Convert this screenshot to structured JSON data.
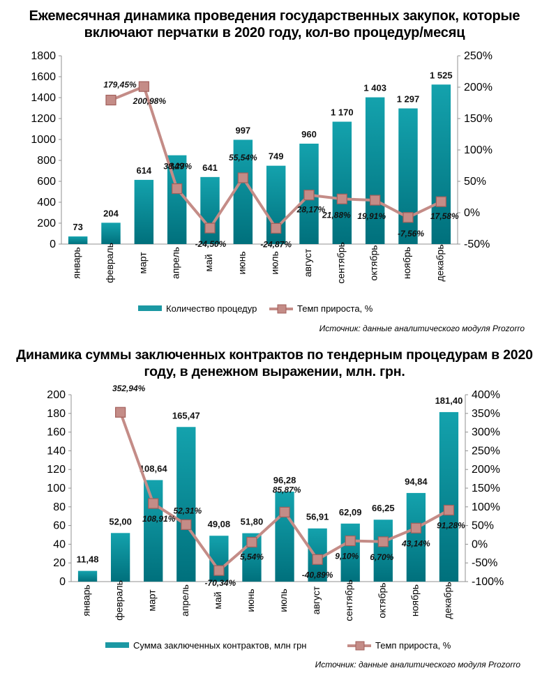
{
  "charts": [
    {
      "title": "Ежемесячная динамика проведения государственных закупок, которые включают перчатки в 2020 году, кол-во процедур/месяц",
      "source": "Источник: данные аналитического модуля Prozorro"
    },
    {
      "title": "Динамика суммы заключенных контрактов по тендерным процедурам в 2020 году, в денежном выражении, млн. грн.",
      "source": "Источник: данные аналитического модуля Prozorro"
    }
  ],
  "chart_data": [
    {
      "type": "bar",
      "title": "Ежемесячная динамика проведения государственных закупок, которые включают перчатки в 2020 году, кол-во процедур/месяц",
      "categories": [
        "январь",
        "февраль",
        "март",
        "апрель",
        "май",
        "июнь",
        "июль",
        "август",
        "сентябрь",
        "октябрь",
        "ноябрь",
        "декабрь"
      ],
      "series": [
        {
          "name": "Количество  процедур",
          "type": "bar",
          "values": [
            73,
            204,
            614,
            849,
            641,
            997,
            749,
            960,
            1170,
            1403,
            1297,
            1525
          ],
          "labels": [
            "73",
            "204",
            "614",
            "849",
            "641",
            "997",
            "749",
            "960",
            "1 170",
            "1 403",
            "1 297",
            "1 525"
          ],
          "color": "#1b98a3"
        },
        {
          "name": "Темп прироста, %",
          "type": "line",
          "values": [
            null,
            179.45,
            200.98,
            38.27,
            -24.5,
            55.54,
            -24.87,
            28.17,
            21.88,
            19.91,
            -7.56,
            17.58
          ],
          "labels": [
            "",
            "179,45%",
            "200,98%",
            "38,27%",
            "-24,50%",
            "55,54%",
            "-24,87%",
            "28,17%",
            "21,88%",
            "19,91%",
            "-7,56%",
            "17,58%"
          ],
          "color": "#c48c87"
        }
      ],
      "ylim": [
        0,
        1800
      ],
      "y_ticks": [
        0,
        200,
        400,
        600,
        800,
        1000,
        1200,
        1400,
        1600,
        1800
      ],
      "y_tick_labels": [
        "0",
        "200",
        "400",
        "600",
        "800",
        "1000",
        "1200",
        "1400",
        "1600",
        "1800"
      ],
      "y2lim": [
        -50,
        250
      ],
      "y2_ticks": [
        -50,
        0,
        50,
        100,
        150,
        200,
        250
      ],
      "y2_tick_labels": [
        "-50%",
        "0%",
        "50%",
        "100%",
        "150%",
        "200%",
        "250%"
      ],
      "legend_position": "bottom",
      "grid": false
    },
    {
      "type": "bar",
      "title": "Динамика суммы заключенных контрактов по тендерным процедурам в 2020 году, в денежном выражении, млн. грн.",
      "categories": [
        "январь",
        "февраль",
        "март",
        "апрель",
        "май",
        "июнь",
        "июль",
        "август",
        "сентябрь",
        "октябрь",
        "ноябрь",
        "декабрь"
      ],
      "series": [
        {
          "name": "Сумма заключенных  контрактов, млн грн",
          "type": "bar",
          "values": [
            11.48,
            52.0,
            108.64,
            165.47,
            49.08,
            51.8,
            96.28,
            56.91,
            62.09,
            66.25,
            94.84,
            181.4
          ],
          "labels": [
            "11,48",
            "52,00",
            "108,64",
            "165,47",
            "49,08",
            "51,80",
            "96,28",
            "56,91",
            "62,09",
            "66,25",
            "94,84",
            "181,40"
          ],
          "color": "#1b98a3"
        },
        {
          "name": "Темп прироста, %",
          "type": "line",
          "values": [
            null,
            352.94,
            108.91,
            52.31,
            -70.34,
            5.54,
            85.87,
            -40.89,
            9.1,
            6.7,
            43.14,
            91.28
          ],
          "labels": [
            "",
            "352,94%",
            "108,91%",
            "52,31%",
            "-70,34%",
            "5,54%",
            "85,87%",
            "-40,89%",
            "9,10%",
            "6,70%",
            "43,14%",
            "91,28%"
          ],
          "color": "#c48c87"
        }
      ],
      "ylim": [
        0,
        200
      ],
      "y_ticks": [
        0,
        20,
        40,
        60,
        80,
        100,
        120,
        140,
        160,
        180,
        200
      ],
      "y_tick_labels": [
        "0",
        "20",
        "40",
        "60",
        "80",
        "100",
        "120",
        "140",
        "160",
        "180",
        "200"
      ],
      "y2lim": [
        -100,
        400
      ],
      "y2_ticks": [
        -100,
        -50,
        0,
        50,
        100,
        150,
        200,
        250,
        300,
        350,
        400
      ],
      "y2_tick_labels": [
        "-100%",
        "-50%",
        "0%",
        "50%",
        "100%",
        "150%",
        "200%",
        "250%",
        "300%",
        "350%",
        "400%"
      ],
      "legend_position": "bottom",
      "grid": false
    }
  ]
}
